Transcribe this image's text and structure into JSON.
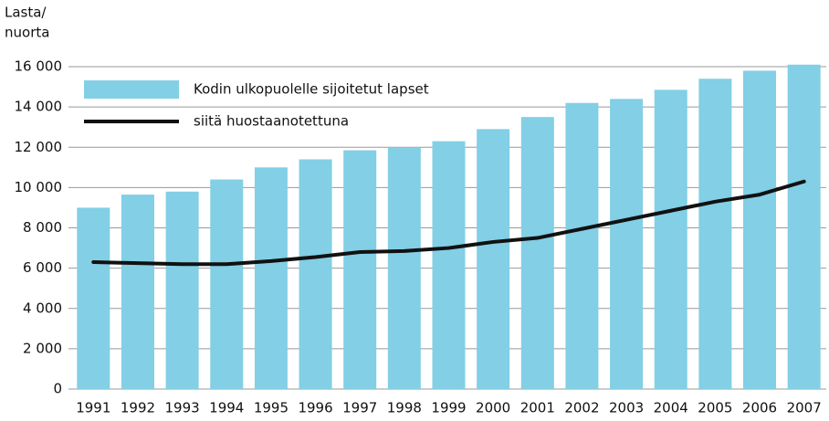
{
  "chart_data": {
    "type": "bar_line",
    "y_label_lines": [
      "Lasta/",
      "nuorta"
    ],
    "categories": [
      "1991",
      "1992",
      "1993",
      "1994",
      "1995",
      "1996",
      "1997",
      "1998",
      "1999",
      "2000",
      "2001",
      "2002",
      "2003",
      "2004",
      "2005",
      "2006",
      "2007"
    ],
    "series": [
      {
        "name": "Kodin ulkopuolelle sijoitetut lapset",
        "type": "bar",
        "color": "#82cfe6",
        "values": [
          9000,
          9650,
          9800,
          10400,
          11000,
          11400,
          11850,
          12000,
          12300,
          12900,
          13500,
          14200,
          14400,
          14850,
          15400,
          15800,
          16100
        ]
      },
      {
        "name": "siitä huostaanotettuna",
        "type": "line",
        "color": "#111111",
        "values": [
          6300,
          6250,
          6200,
          6200,
          6350,
          6550,
          6800,
          6850,
          7000,
          7300,
          7500,
          7950,
          8400,
          8850,
          9300,
          9650,
          10300
        ]
      }
    ],
    "ylim": [
      0,
      16000
    ],
    "yticks": [
      0,
      {
        "value": 2000,
        "label": "2 000"
      },
      {
        "value": 4000,
        "label": "4 000"
      },
      {
        "value": 6000,
        "label": "6 000"
      },
      {
        "value": 8000,
        "label": "8 000"
      },
      {
        "value": 10000,
        "label": "10 000"
      },
      {
        "value": 12000,
        "label": "12 000"
      },
      {
        "value": 14000,
        "label": "14 000"
      },
      {
        "value": 16000,
        "label": "16 000"
      }
    ],
    "grid": true,
    "legend": "top-left"
  }
}
